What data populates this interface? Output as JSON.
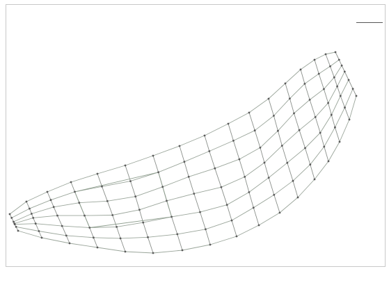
{
  "header": {
    "text": ""
  },
  "legend": {
    "title": "",
    "lines": [
      "",
      "",
      ""
    ]
  },
  "diagram": {
    "colors": {
      "grid_line": "#9aa59a",
      "grid_line_alt": "#8a8f8a",
      "patch": "#8f9f8f",
      "node": "#5a5a5a",
      "frame": "#c8c8c8"
    },
    "rows": 7,
    "columns": 16
  }
}
